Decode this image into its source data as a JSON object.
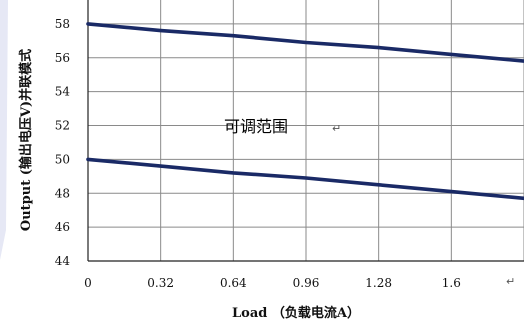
{
  "chart_data": {
    "type": "line",
    "xlabel": "Load （负载电流A）",
    "ylabel": "Output (输出电压V)并联模式",
    "x_ticks": [
      "0",
      "0.32",
      "0.64",
      "0.96",
      "1.28",
      "1.6"
    ],
    "y_ticks": [
      "44",
      "46",
      "48",
      "50",
      "52",
      "54",
      "56",
      "58"
    ],
    "xlim": [
      0,
      1.92
    ],
    "ylim": [
      44,
      60
    ],
    "grid": true,
    "series": [
      {
        "x": [
          0,
          0.32,
          0.64,
          0.96,
          1.28,
          1.6,
          1.92
        ],
        "values": [
          58.0,
          57.6,
          57.3,
          56.9,
          56.6,
          56.2,
          55.8
        ],
        "color": "#1a2a66"
      },
      {
        "x": [
          0,
          0.32,
          0.64,
          0.96,
          1.28,
          1.6,
          1.92
        ],
        "values": [
          50.0,
          49.6,
          49.2,
          48.9,
          48.5,
          48.1,
          47.7
        ],
        "color": "#1a2a66"
      }
    ],
    "annotations": [
      {
        "text": "可调范围",
        "x": 0.96,
        "y": 52.0
      }
    ],
    "return_mark": "↵"
  }
}
